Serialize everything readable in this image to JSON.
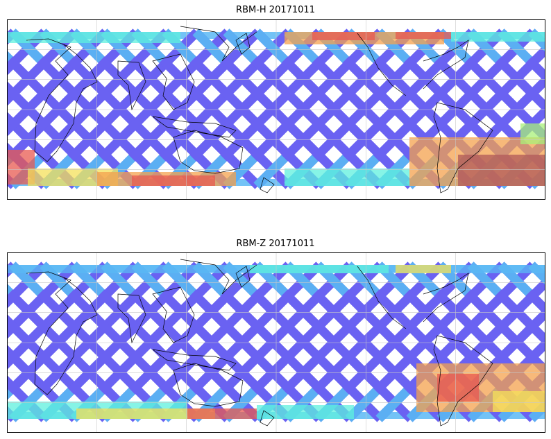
{
  "panels": [
    {
      "title": "RBM-H 20171011",
      "variant": "H"
    },
    {
      "title": "RBM-Z 20171011",
      "variant": "Z"
    }
  ],
  "colors": {
    "swath_base": "#6a62f2",
    "swath_mid": "#5ab8f4",
    "swath_cyan": "#5ef0de",
    "swath_green": "#a8f07a",
    "swath_yellow": "#f4e05a",
    "swath_orange": "#f4a24e",
    "swath_red": "#e85a50",
    "swath_darkred": "#b05a5a",
    "coastline": "#000000",
    "gridline": "#c8c8c8"
  }
}
